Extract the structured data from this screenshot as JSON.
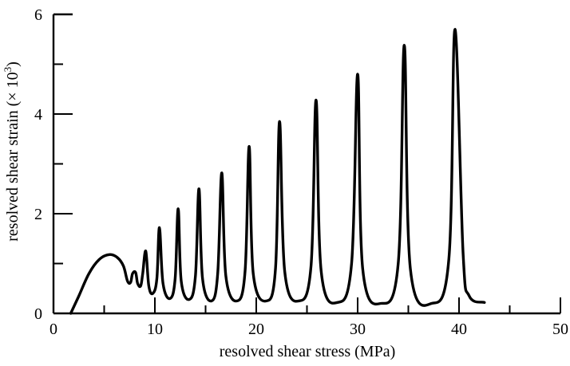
{
  "chart_data": {
    "type": "line",
    "title": "",
    "xlabel": "resolved shear stress (MPa)",
    "ylabel_main": "resolved shear strain (",
    "ylabel_times": "× 10",
    "ylabel_exp": "3",
    "ylabel_close": ")",
    "xlim": [
      0,
      50
    ],
    "ylim": [
      0,
      6
    ],
    "xticks": [
      0,
      10,
      20,
      30,
      40,
      50
    ],
    "xticks_minor": [
      5,
      15,
      25,
      35,
      45
    ],
    "yticks": [
      0,
      2,
      4,
      6
    ],
    "yticks_minor": [
      1,
      3,
      5
    ],
    "grid": false,
    "series": [
      {
        "color": "#000000",
        "points": [
          [
            1.7,
            0.0
          ],
          [
            2.5,
            0.35
          ],
          [
            3.5,
            0.8
          ],
          [
            4.5,
            1.08
          ],
          [
            5.5,
            1.18
          ],
          [
            6.3,
            1.12
          ],
          [
            6.9,
            0.95
          ],
          [
            7.3,
            0.65
          ],
          [
            7.6,
            0.62
          ],
          [
            7.8,
            0.8
          ],
          [
            8.1,
            0.82
          ],
          [
            8.3,
            0.6
          ],
          [
            8.6,
            0.55
          ],
          [
            8.8,
            0.8
          ],
          [
            9.1,
            1.25
          ],
          [
            9.4,
            0.55
          ],
          [
            9.8,
            0.4
          ],
          [
            10.2,
            0.7
          ],
          [
            10.45,
            1.72
          ],
          [
            10.8,
            0.6
          ],
          [
            11.5,
            0.3
          ],
          [
            12.0,
            0.7
          ],
          [
            12.3,
            2.1
          ],
          [
            12.6,
            0.65
          ],
          [
            13.4,
            0.28
          ],
          [
            14.0,
            0.75
          ],
          [
            14.35,
            2.5
          ],
          [
            14.7,
            0.7
          ],
          [
            15.6,
            0.25
          ],
          [
            16.2,
            0.8
          ],
          [
            16.6,
            2.82
          ],
          [
            17.0,
            0.75
          ],
          [
            18.1,
            0.25
          ],
          [
            18.9,
            0.85
          ],
          [
            19.3,
            3.35
          ],
          [
            19.7,
            0.8
          ],
          [
            21.0,
            0.25
          ],
          [
            21.9,
            0.9
          ],
          [
            22.3,
            3.85
          ],
          [
            22.8,
            0.85
          ],
          [
            24.2,
            0.25
          ],
          [
            25.4,
            0.95
          ],
          [
            25.9,
            4.28
          ],
          [
            26.4,
            0.85
          ],
          [
            28.0,
            0.22
          ],
          [
            29.4,
            1.0
          ],
          [
            30.0,
            4.8
          ],
          [
            30.5,
            0.9
          ],
          [
            32.3,
            0.2
          ],
          [
            34.0,
            1.0
          ],
          [
            34.6,
            5.38
          ],
          [
            35.2,
            0.9
          ],
          [
            37.3,
            0.2
          ],
          [
            39.0,
            1.1
          ],
          [
            39.6,
            5.7
          ],
          [
            40.4,
            1.2
          ],
          [
            41.0,
            0.35
          ],
          [
            42.5,
            0.22
          ]
        ]
      }
    ]
  }
}
